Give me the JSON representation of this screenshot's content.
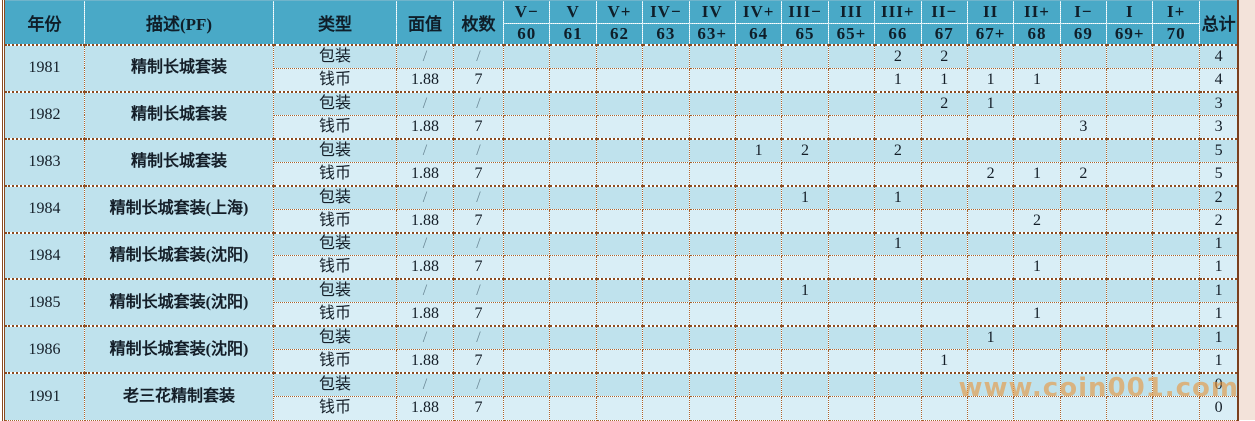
{
  "watermark": "www.coin001.com",
  "colors": {
    "header_bg": "#49a9c7",
    "row_dark": "#bfe2ed",
    "row_light": "#d9eef6",
    "grid_border": "#a5622e",
    "watermark_color": "#e8963e"
  },
  "table": {
    "headers": {
      "year": "年份",
      "desc": "描述(PF)",
      "type": "类型",
      "face": "面值",
      "count": "枚数",
      "total": "总计"
    },
    "grade_columns": [
      {
        "roman": "V−",
        "grade": "60"
      },
      {
        "roman": "V",
        "grade": "61"
      },
      {
        "roman": "V+",
        "grade": "62"
      },
      {
        "roman": "IV−",
        "grade": "63"
      },
      {
        "roman": "IV",
        "grade": "63+"
      },
      {
        "roman": "IV+",
        "grade": "64"
      },
      {
        "roman": "III−",
        "grade": "65"
      },
      {
        "roman": "III",
        "grade": "65+"
      },
      {
        "roman": "III+",
        "grade": "66"
      },
      {
        "roman": "II−",
        "grade": "67"
      },
      {
        "roman": "II",
        "grade": "67+"
      },
      {
        "roman": "II+",
        "grade": "68"
      },
      {
        "roman": "I−",
        "grade": "69"
      },
      {
        "roman": "I",
        "grade": "69+"
      },
      {
        "roman": "I+",
        "grade": "70"
      }
    ],
    "groups": [
      {
        "year": "1981",
        "desc": "精制长城套装",
        "rows": [
          {
            "type": "包装",
            "face": "/",
            "count": "/",
            "grades": [
              "",
              "",
              "",
              "",
              "",
              "",
              "",
              "",
              "2",
              "2",
              "",
              "",
              "",
              "",
              ""
            ],
            "total": "4"
          },
          {
            "type": "钱币",
            "face": "1.88",
            "count": "7",
            "grades": [
              "",
              "",
              "",
              "",
              "",
              "",
              "",
              "",
              "1",
              "1",
              "1",
              "1",
              "",
              "",
              ""
            ],
            "total": "4"
          }
        ]
      },
      {
        "year": "1982",
        "desc": "精制长城套装",
        "rows": [
          {
            "type": "包装",
            "face": "/",
            "count": "/",
            "grades": [
              "",
              "",
              "",
              "",
              "",
              "",
              "",
              "",
              "",
              "2",
              "1",
              "",
              "",
              "",
              ""
            ],
            "total": "3"
          },
          {
            "type": "钱币",
            "face": "1.88",
            "count": "7",
            "grades": [
              "",
              "",
              "",
              "",
              "",
              "",
              "",
              "",
              "",
              "",
              "",
              "",
              "3",
              "",
              ""
            ],
            "total": "3"
          }
        ]
      },
      {
        "year": "1983",
        "desc": "精制长城套装",
        "rows": [
          {
            "type": "包装",
            "face": "/",
            "count": "/",
            "grades": [
              "",
              "",
              "",
              "",
              "",
              "1",
              "2",
              "",
              "2",
              "",
              "",
              "",
              "",
              "",
              ""
            ],
            "total": "5"
          },
          {
            "type": "钱币",
            "face": "1.88",
            "count": "7",
            "grades": [
              "",
              "",
              "",
              "",
              "",
              "",
              "",
              "",
              "",
              "",
              "2",
              "1",
              "2",
              "",
              ""
            ],
            "total": "5"
          }
        ]
      },
      {
        "year": "1984",
        "desc": "精制长城套装(上海)",
        "rows": [
          {
            "type": "包装",
            "face": "/",
            "count": "/",
            "grades": [
              "",
              "",
              "",
              "",
              "",
              "",
              "1",
              "",
              "1",
              "",
              "",
              "",
              "",
              "",
              ""
            ],
            "total": "2"
          },
          {
            "type": "钱币",
            "face": "1.88",
            "count": "7",
            "grades": [
              "",
              "",
              "",
              "",
              "",
              "",
              "",
              "",
              "",
              "",
              "",
              "2",
              "",
              "",
              ""
            ],
            "total": "2"
          }
        ]
      },
      {
        "year": "1984",
        "desc": "精制长城套装(沈阳)",
        "rows": [
          {
            "type": "包装",
            "face": "/",
            "count": "/",
            "grades": [
              "",
              "",
              "",
              "",
              "",
              "",
              "",
              "",
              "1",
              "",
              "",
              "",
              "",
              "",
              ""
            ],
            "total": "1"
          },
          {
            "type": "钱币",
            "face": "1.88",
            "count": "7",
            "grades": [
              "",
              "",
              "",
              "",
              "",
              "",
              "",
              "",
              "",
              "",
              "",
              "1",
              "",
              "",
              ""
            ],
            "total": "1"
          }
        ]
      },
      {
        "year": "1985",
        "desc": "精制长城套装(沈阳)",
        "rows": [
          {
            "type": "包装",
            "face": "/",
            "count": "/",
            "grades": [
              "",
              "",
              "",
              "",
              "",
              "",
              "1",
              "",
              "",
              "",
              "",
              "",
              "",
              "",
              ""
            ],
            "total": "1"
          },
          {
            "type": "钱币",
            "face": "1.88",
            "count": "7",
            "grades": [
              "",
              "",
              "",
              "",
              "",
              "",
              "",
              "",
              "",
              "",
              "",
              "1",
              "",
              "",
              ""
            ],
            "total": "1"
          }
        ]
      },
      {
        "year": "1986",
        "desc": "精制长城套装(沈阳)",
        "rows": [
          {
            "type": "包装",
            "face": "/",
            "count": "/",
            "grades": [
              "",
              "",
              "",
              "",
              "",
              "",
              "",
              "",
              "",
              "",
              "1",
              "",
              "",
              "",
              ""
            ],
            "total": "1"
          },
          {
            "type": "钱币",
            "face": "1.88",
            "count": "7",
            "grades": [
              "",
              "",
              "",
              "",
              "",
              "",
              "",
              "",
              "",
              "1",
              "",
              "",
              "",
              "",
              ""
            ],
            "total": "1"
          }
        ]
      },
      {
        "year": "1991",
        "desc": "老三花精制套装",
        "rows": [
          {
            "type": "包装",
            "face": "/",
            "count": "/",
            "grades": [
              "",
              "",
              "",
              "",
              "",
              "",
              "",
              "",
              "",
              "",
              "",
              "",
              "",
              "",
              ""
            ],
            "total": "0"
          },
          {
            "type": "钱币",
            "face": "1.88",
            "count": "7",
            "grades": [
              "",
              "",
              "",
              "",
              "",
              "",
              "",
              "",
              "",
              "",
              "",
              "",
              "",
              "",
              ""
            ],
            "total": "0"
          }
        ]
      }
    ]
  }
}
